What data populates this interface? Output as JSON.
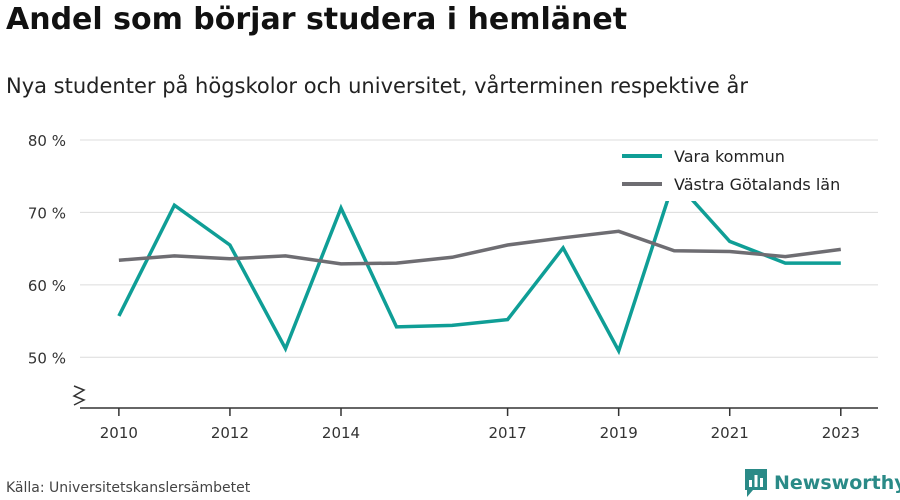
{
  "chart_data": {
    "type": "line",
    "title": "Andel som börjar studera i hemlänet",
    "subtitle": "Nya studenter på högskolor och universitet, vårterminen respektive år",
    "x": [
      2010,
      2011,
      2012,
      2013,
      2014,
      2015,
      2016,
      2017,
      2018,
      2019,
      2020,
      2021,
      2022,
      2023
    ],
    "xticks": [
      "2010",
      "2012",
      "2014",
      "2017",
      "2019",
      "2021",
      "2023"
    ],
    "ylim": [
      43,
      80
    ],
    "yticks": [
      50,
      60,
      70,
      80
    ],
    "ytick_labels": [
      "50 %",
      "60 %",
      "70 %",
      "80 %"
    ],
    "grid": true,
    "legend_position": "top-right",
    "series": [
      {
        "name": "Vara kommun",
        "color": "#0f9e96",
        "values": [
          55.7,
          71.0,
          65.5,
          51.2,
          70.6,
          54.2,
          54.4,
          55.2,
          65.1,
          50.9,
          74.5,
          66.0,
          63.0,
          63.0
        ]
      },
      {
        "name": "Västra Götalands län",
        "color": "#6e6d72",
        "values": [
          63.4,
          64.0,
          63.6,
          64.0,
          62.9,
          63.0,
          63.8,
          65.5,
          66.5,
          67.4,
          64.7,
          64.6,
          63.9,
          64.9
        ]
      }
    ]
  },
  "footer": {
    "source": "Källa: Universitetskanslersämbetet",
    "brand": "Newsworthy",
    "brand_icon": "bar-chart-logo-icon"
  }
}
